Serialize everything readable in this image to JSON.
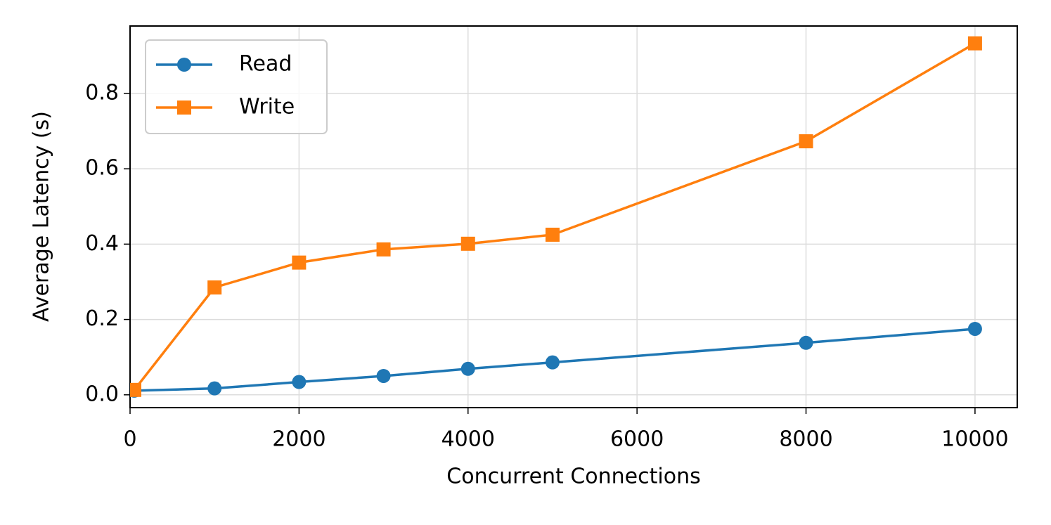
{
  "chart_data": {
    "type": "line",
    "xlabel": "Concurrent Connections",
    "ylabel": "Average Latency (s)",
    "x": [
      50,
      1000,
      2000,
      3000,
      4000,
      5000,
      8000,
      10000
    ],
    "series": [
      {
        "name": "Read",
        "color": "#1f77b4",
        "marker": "circle",
        "values": [
          0.011,
          0.017,
          0.034,
          0.05,
          0.069,
          0.086,
          0.138,
          0.175
        ]
      },
      {
        "name": "Write",
        "color": "#ff7f0e",
        "marker": "square",
        "values": [
          0.013,
          0.285,
          0.351,
          0.386,
          0.401,
          0.425,
          0.673,
          0.933
        ]
      }
    ],
    "xlim": [
      0,
      10500
    ],
    "ylim": [
      -0.034,
      0.979
    ],
    "xticks": [
      0,
      2000,
      4000,
      6000,
      8000,
      10000
    ],
    "yticks": [
      {
        "value": 0,
        "label": "0.0"
      },
      0.2,
      0.4,
      0.6,
      0.8
    ],
    "grid": true,
    "legend": "upper-left"
  }
}
